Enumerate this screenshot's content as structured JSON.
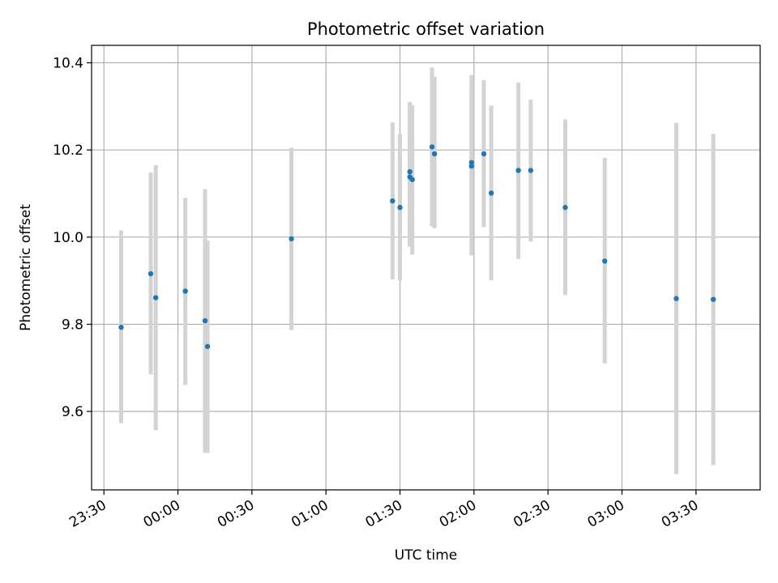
{
  "chart_data": {
    "type": "scatter",
    "title": "Photometric offset variation",
    "xlabel": "UTC time",
    "ylabel": "Photometric offset",
    "x_axis_type": "time",
    "x_range": [
      "23:25",
      "03:56"
    ],
    "ylim": [
      9.42,
      10.44
    ],
    "grid": true,
    "x_ticks": [
      "23:30",
      "00:00",
      "00:30",
      "01:00",
      "01:30",
      "02:00",
      "02:30",
      "03:00",
      "03:30"
    ],
    "y_ticks": [
      9.6,
      9.8,
      10.0,
      10.2,
      10.4
    ],
    "y_tick_labels": [
      "9.6",
      "9.8",
      "10.0",
      "10.2",
      "10.4"
    ],
    "colors": {
      "point": "#1f77b4",
      "errorbar": "#d3d3d3",
      "grid": "#b0b0b0"
    },
    "series": [
      {
        "points": [
          {
            "x": "23:37",
            "y": 9.793,
            "ylow": 9.573,
            "yhigh": 10.015
          },
          {
            "x": "23:49",
            "y": 9.916,
            "ylow": 9.685,
            "yhigh": 10.148
          },
          {
            "x": "23:51",
            "y": 9.861,
            "ylow": 9.557,
            "yhigh": 10.165
          },
          {
            "x": "00:03",
            "y": 9.876,
            "ylow": 9.661,
            "yhigh": 10.09
          },
          {
            "x": "00:11",
            "y": 9.808,
            "ylow": 9.505,
            "yhigh": 10.11
          },
          {
            "x": "00:12",
            "y": 9.749,
            "ylow": 9.505,
            "yhigh": 9.992
          },
          {
            "x": "00:46",
            "y": 9.996,
            "ylow": 9.787,
            "yhigh": 10.205
          },
          {
            "x": "01:27",
            "y": 10.083,
            "ylow": 9.903,
            "yhigh": 10.263
          },
          {
            "x": "01:30",
            "y": 10.068,
            "ylow": 9.9,
            "yhigh": 10.236
          },
          {
            "x": "01:34",
            "y": 10.15,
            "ylow": 9.978,
            "yhigh": 10.31
          },
          {
            "x": "01:34",
            "y": 10.138,
            "ylow": 9.978,
            "yhigh": 10.305
          },
          {
            "x": "01:35",
            "y": 10.132,
            "ylow": 9.96,
            "yhigh": 10.303
          },
          {
            "x": "01:43",
            "y": 10.207,
            "ylow": 10.025,
            "yhigh": 10.389
          },
          {
            "x": "01:44",
            "y": 10.191,
            "ylow": 10.02,
            "yhigh": 10.368
          },
          {
            "x": "01:59",
            "y": 10.171,
            "ylow": 10.0,
            "yhigh": 10.34
          },
          {
            "x": "01:59",
            "y": 10.163,
            "ylow": 9.958,
            "yhigh": 10.372
          },
          {
            "x": "02:04",
            "y": 10.191,
            "ylow": 10.023,
            "yhigh": 10.36
          },
          {
            "x": "02:07",
            "y": 10.101,
            "ylow": 9.901,
            "yhigh": 10.302
          },
          {
            "x": "02:18",
            "y": 10.153,
            "ylow": 9.95,
            "yhigh": 10.355
          },
          {
            "x": "02:23",
            "y": 10.153,
            "ylow": 9.99,
            "yhigh": 10.315
          },
          {
            "x": "02:37",
            "y": 10.068,
            "ylow": 9.867,
            "yhigh": 10.27
          },
          {
            "x": "02:53",
            "y": 9.945,
            "ylow": 9.71,
            "yhigh": 10.182
          },
          {
            "x": "03:22",
            "y": 9.859,
            "ylow": 9.456,
            "yhigh": 10.262
          },
          {
            "x": "03:37",
            "y": 9.857,
            "ylow": 9.477,
            "yhigh": 10.237
          }
        ]
      }
    ]
  }
}
